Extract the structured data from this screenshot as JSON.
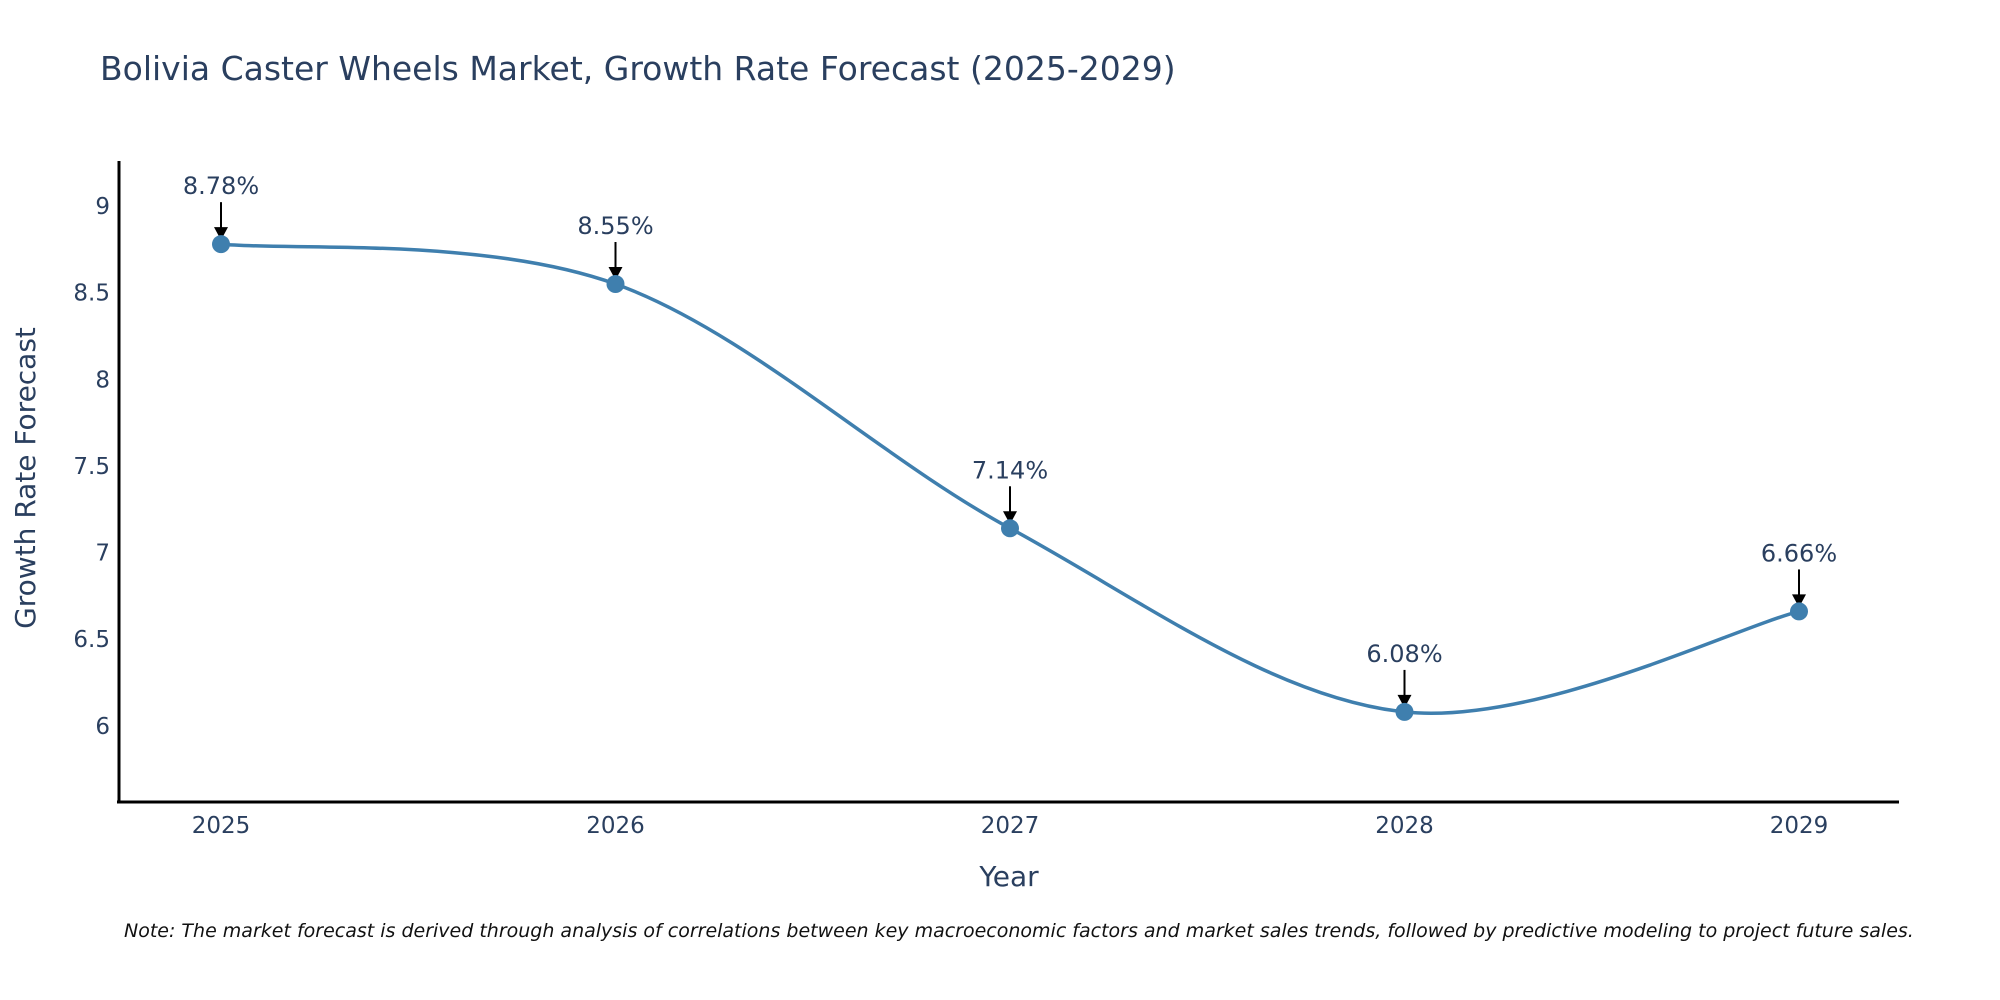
{
  "chart_data": {
    "type": "line",
    "title": "Bolivia Caster Wheels Market, Growth Rate Forecast (2025-2029)",
    "xlabel": "Year",
    "ylabel": "Growth Rate Forecast",
    "categories": [
      "2025",
      "2026",
      "2027",
      "2028",
      "2029"
    ],
    "series": [
      {
        "name": "Growth Rate Forecast",
        "values": [
          8.78,
          8.55,
          7.14,
          6.08,
          6.66
        ],
        "labels": [
          "8.78%",
          "8.55%",
          "7.14%",
          "6.08%",
          "6.66%"
        ]
      }
    ],
    "yticks": [
      "6",
      "6.5",
      "7",
      "7.5",
      "8",
      "8.5",
      "9"
    ],
    "ylim": [
      5.56,
      9.26
    ],
    "grid": false,
    "legend": "none",
    "line_color": "#3f7fae",
    "marker_color": "#3f7fae",
    "arrow_color": "#000000"
  },
  "note": "Note: The market forecast is derived through analysis of correlations between key macroeconomic factors and market sales trends, followed by predictive modeling to project future sales."
}
